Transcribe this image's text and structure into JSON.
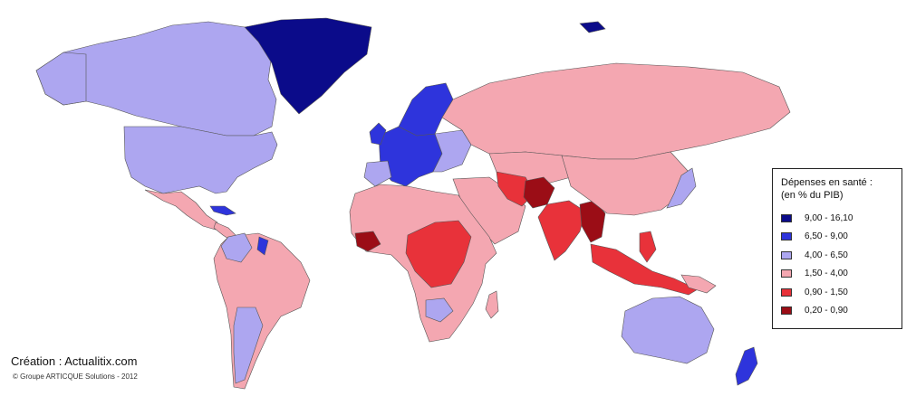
{
  "legend": {
    "title_line1": "Dépenses en santé :",
    "title_line2": "(en % du PIB)",
    "classes": [
      {
        "label": "9,00 - 16,10",
        "color": "#0b0b8a"
      },
      {
        "label": "6,50 - 9,00",
        "color": "#2e34dc"
      },
      {
        "label": "4,00 - 6,50",
        "color": "#ada6f0"
      },
      {
        "label": "1,50 - 4,00",
        "color": "#f4a7b1"
      },
      {
        "label": "0,90 - 1,50",
        "color": "#e8323a"
      },
      {
        "label": "0,20 - 0,90",
        "color": "#9b0d16"
      }
    ]
  },
  "credit": "Création : Actualitix.com",
  "copyright": "© Groupe ARTICQUE Solutions - 2012",
  "colors": {
    "no_data": "#ffffff",
    "border": "#555555"
  }
}
